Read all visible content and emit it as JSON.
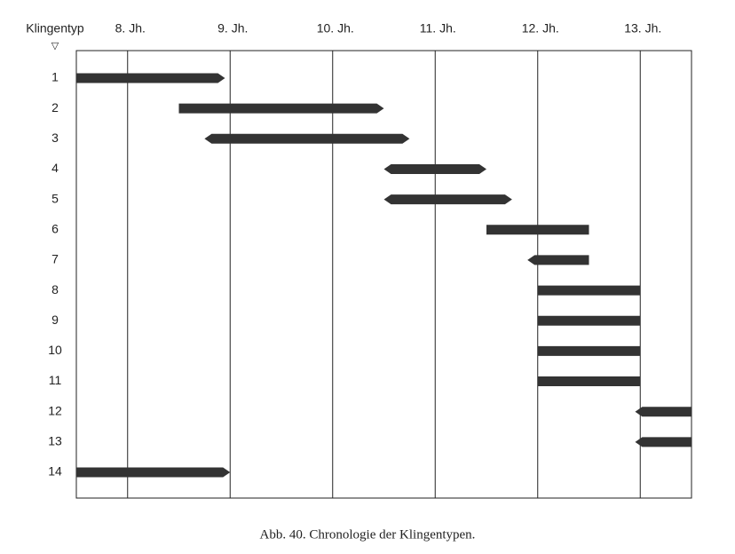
{
  "chart_data": {
    "type": "range",
    "caption": "Abb. 40.  Chronologie der Klingentypen.",
    "y_label": "Klingentyp",
    "y_marker": "▽",
    "categories": [
      "1",
      "2",
      "3",
      "4",
      "5",
      "6",
      "7",
      "8",
      "9",
      "10",
      "11",
      "12",
      "13",
      "14"
    ],
    "start": [
      7.5,
      8.5,
      8.75,
      10.5,
      10.5,
      11.5,
      11.9,
      12.0,
      12.0,
      12.0,
      12.0,
      12.95,
      12.95,
      7.5
    ],
    "end": [
      8.95,
      10.5,
      10.75,
      11.5,
      11.75,
      12.5,
      12.5,
      13.0,
      13.0,
      13.0,
      13.0,
      13.5,
      13.5,
      9.0
    ],
    "arrow_start": [
      false,
      false,
      true,
      true,
      true,
      false,
      true,
      false,
      false,
      false,
      false,
      true,
      true,
      false
    ],
    "arrow_end": [
      true,
      true,
      true,
      true,
      true,
      false,
      false,
      false,
      false,
      false,
      false,
      false,
      false,
      true
    ],
    "color": "#333333",
    "xlim": [
      7.5,
      13.5
    ],
    "xticks": [
      {
        "value": 8,
        "label": "8. Jh."
      },
      {
        "value": 9,
        "label": "9. Jh."
      },
      {
        "value": 10,
        "label": "10. Jh."
      },
      {
        "value": 11,
        "label": "11. Jh."
      },
      {
        "value": 12,
        "label": "12. Jh."
      },
      {
        "value": 13,
        "label": "13. Jh."
      }
    ],
    "grid": true
  }
}
